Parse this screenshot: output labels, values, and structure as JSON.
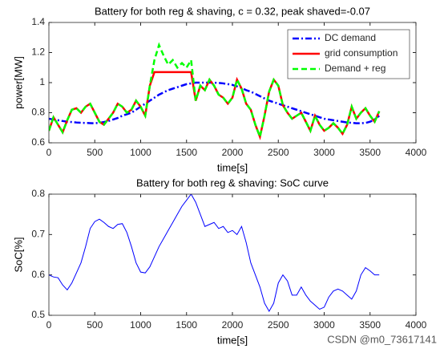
{
  "chart_data": [
    {
      "type": "line",
      "title": "Battery for both reg & shaving, c = 0.32, peak shaved=-0.07",
      "xlabel": "time[s]",
      "ylabel": "power[MW]",
      "xlim": [
        0,
        4000
      ],
      "xticks": [
        0,
        500,
        1000,
        1500,
        2000,
        2500,
        3000,
        3500,
        4000
      ],
      "ylim": [
        0.6,
        1.4
      ],
      "yticks": [
        0.6,
        0.8,
        1,
        1.2,
        1.4
      ],
      "legend": "northeast",
      "x": [
        0,
        50,
        100,
        150,
        200,
        250,
        300,
        350,
        400,
        450,
        500,
        550,
        600,
        650,
        700,
        750,
        800,
        850,
        900,
        950,
        1000,
        1050,
        1100,
        1150,
        1200,
        1250,
        1300,
        1350,
        1400,
        1450,
        1500,
        1550,
        1600,
        1650,
        1700,
        1750,
        1800,
        1850,
        1900,
        1950,
        2000,
        2050,
        2100,
        2150,
        2200,
        2250,
        2300,
        2350,
        2400,
        2450,
        2500,
        2550,
        2600,
        2650,
        2700,
        2750,
        2800,
        2850,
        2900,
        2950,
        3000,
        3050,
        3100,
        3150,
        3200,
        3250,
        3300,
        3350,
        3400,
        3450,
        3500,
        3550,
        3600
      ],
      "series": [
        {
          "name": "DC demand",
          "color": "#0000ff",
          "dash": "8 3 2 3",
          "width": 2.5,
          "values": [
            0.76,
            0.755,
            0.75,
            0.745,
            0.74,
            0.738,
            0.735,
            0.733,
            0.732,
            0.731,
            0.73,
            0.733,
            0.738,
            0.745,
            0.755,
            0.765,
            0.78,
            0.79,
            0.8,
            0.82,
            0.84,
            0.86,
            0.88,
            0.9,
            0.92,
            0.935,
            0.95,
            0.96,
            0.97,
            0.98,
            0.99,
            0.995,
            1.0,
            1.0,
            1.0,
            1.0,
            1.0,
            0.998,
            0.995,
            0.99,
            0.985,
            0.975,
            0.965,
            0.95,
            0.94,
            0.925,
            0.91,
            0.895,
            0.88,
            0.87,
            0.86,
            0.85,
            0.84,
            0.83,
            0.82,
            0.81,
            0.8,
            0.79,
            0.78,
            0.77,
            0.76,
            0.755,
            0.75,
            0.745,
            0.74,
            0.735,
            0.733,
            0.73,
            0.73,
            0.732,
            0.74,
            0.755,
            0.78
          ]
        },
        {
          "name": "grid consumption",
          "color": "#ff0000",
          "dash": "none",
          "width": 2.5,
          "values": [
            0.68,
            0.77,
            0.72,
            0.67,
            0.75,
            0.82,
            0.83,
            0.8,
            0.84,
            0.86,
            0.8,
            0.74,
            0.72,
            0.76,
            0.8,
            0.86,
            0.84,
            0.8,
            0.82,
            0.88,
            0.84,
            0.78,
            0.98,
            1.07,
            1.07,
            1.07,
            1.07,
            1.07,
            1.07,
            1.07,
            1.07,
            1.07,
            0.88,
            0.98,
            0.95,
            1.02,
            0.98,
            0.92,
            0.9,
            0.86,
            0.9,
            1.02,
            0.96,
            0.86,
            0.82,
            0.72,
            0.64,
            0.78,
            0.94,
            1.02,
            0.98,
            0.85,
            0.8,
            0.76,
            0.78,
            0.8,
            0.74,
            0.68,
            0.78,
            0.72,
            0.68,
            0.7,
            0.73,
            0.7,
            0.66,
            0.72,
            0.84,
            0.76,
            0.8,
            0.83,
            0.78,
            0.74,
            0.81
          ]
        },
        {
          "name": "Demand + reg",
          "color": "#00ff00",
          "dash": "7 4",
          "width": 2.5,
          "values": [
            0.68,
            0.77,
            0.72,
            0.67,
            0.75,
            0.82,
            0.83,
            0.8,
            0.84,
            0.86,
            0.8,
            0.74,
            0.72,
            0.76,
            0.8,
            0.86,
            0.84,
            0.8,
            0.82,
            0.88,
            0.84,
            0.78,
            0.98,
            1.15,
            1.25,
            1.18,
            1.12,
            1.15,
            1.1,
            1.13,
            1.1,
            1.15,
            0.88,
            0.98,
            0.95,
            1.02,
            0.98,
            0.92,
            0.9,
            0.86,
            0.9,
            1.02,
            0.96,
            0.86,
            0.82,
            0.72,
            0.64,
            0.78,
            0.94,
            1.02,
            0.98,
            0.85,
            0.8,
            0.76,
            0.78,
            0.8,
            0.74,
            0.68,
            0.78,
            0.72,
            0.68,
            0.7,
            0.73,
            0.7,
            0.66,
            0.72,
            0.84,
            0.76,
            0.8,
            0.83,
            0.78,
            0.74,
            0.81
          ]
        }
      ]
    },
    {
      "type": "line",
      "title": "Battery for both reg & shaving: SoC curve",
      "xlabel": "time[s]",
      "ylabel": "SoC[%]",
      "xlim": [
        0,
        4000
      ],
      "xticks": [
        0,
        500,
        1000,
        1500,
        2000,
        2500,
        3000,
        3500,
        4000
      ],
      "ylim": [
        0.5,
        0.8
      ],
      "yticks": [
        0.5,
        0.6,
        0.7,
        0.8
      ],
      "x": [
        0,
        50,
        100,
        150,
        200,
        250,
        300,
        350,
        400,
        450,
        500,
        550,
        600,
        650,
        700,
        750,
        800,
        850,
        900,
        950,
        1000,
        1050,
        1100,
        1150,
        1200,
        1250,
        1300,
        1350,
        1400,
        1450,
        1500,
        1550,
        1600,
        1650,
        1700,
        1750,
        1800,
        1850,
        1900,
        1950,
        2000,
        2050,
        2100,
        2150,
        2200,
        2250,
        2300,
        2350,
        2400,
        2450,
        2500,
        2550,
        2600,
        2650,
        2700,
        2750,
        2800,
        2850,
        2900,
        2950,
        3000,
        3050,
        3100,
        3150,
        3200,
        3250,
        3300,
        3350,
        3400,
        3450,
        3500,
        3550,
        3600
      ],
      "series": [
        {
          "color": "#0000ff",
          "dash": "none",
          "width": 1,
          "values": [
            0.6,
            0.595,
            0.593,
            0.575,
            0.563,
            0.58,
            0.605,
            0.63,
            0.67,
            0.715,
            0.732,
            0.738,
            0.73,
            0.72,
            0.715,
            0.725,
            0.727,
            0.705,
            0.67,
            0.63,
            0.607,
            0.605,
            0.62,
            0.645,
            0.67,
            0.69,
            0.71,
            0.73,
            0.75,
            0.77,
            0.785,
            0.8,
            0.78,
            0.75,
            0.72,
            0.725,
            0.73,
            0.715,
            0.72,
            0.705,
            0.71,
            0.7,
            0.72,
            0.68,
            0.63,
            0.6,
            0.57,
            0.53,
            0.51,
            0.53,
            0.58,
            0.6,
            0.585,
            0.55,
            0.55,
            0.57,
            0.55,
            0.535,
            0.525,
            0.515,
            0.52,
            0.545,
            0.56,
            0.565,
            0.56,
            0.55,
            0.54,
            0.56,
            0.6,
            0.618,
            0.61,
            0.6,
            0.6
          ]
        }
      ]
    }
  ],
  "watermark": "CSDN @m0_73617141"
}
